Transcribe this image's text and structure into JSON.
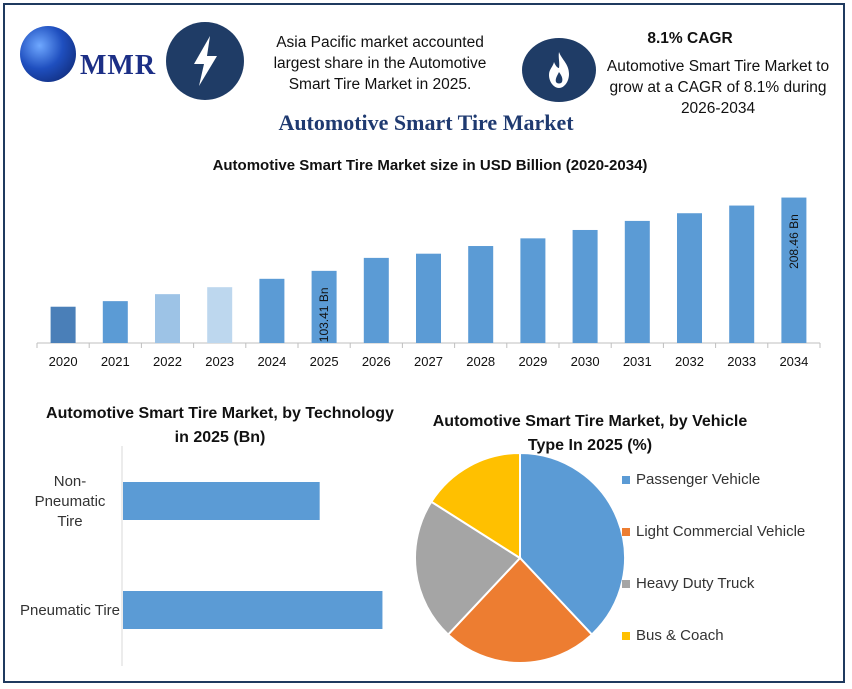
{
  "header": {
    "logo_text": "MMR",
    "callout_left": "Asia Pacific market accounted largest share in the Automotive Smart Tire Market in 2025.",
    "cagr_heading": "8.1% CAGR",
    "callout_right": "Automotive Smart Tire Market to grow at a CAGR of 8.1% during 2026-2034",
    "icons": [
      "lightning-icon",
      "flame-icon"
    ]
  },
  "main_title": "Automotive Smart Tire Market",
  "chart_data": [
    {
      "type": "bar",
      "title": "Automotive Smart Tire Market size in USD Billion (2020-2034)",
      "categories": [
        "2020",
        "2021",
        "2022",
        "2023",
        "2024",
        "2025",
        "2026",
        "2027",
        "2028",
        "2029",
        "2030",
        "2031",
        "2032",
        "2033",
        "2034"
      ],
      "values": [
        52,
        60,
        70,
        80,
        92,
        103.41,
        122,
        128,
        139,
        150,
        162,
        175,
        186,
        197,
        208.46
      ],
      "data_labels": {
        "5": "103.41 Bn",
        "14": "208.46 Bn"
      },
      "colors": [
        "#4a7fb8",
        "#5b9bd5",
        "#9dc3e6",
        "#bdd7ee",
        "#5b9bd5",
        "#5b9bd5",
        "#5b9bd5",
        "#5b9bd5",
        "#5b9bd5",
        "#5b9bd5",
        "#5b9bd5",
        "#5b9bd5",
        "#5b9bd5",
        "#5b9bd5",
        "#5b9bd5"
      ],
      "ylim": [
        0,
        215
      ],
      "grid": false
    },
    {
      "type": "bar",
      "orientation": "horizontal",
      "title": "Automotive Smart Tire Market, by Technology in 2025 (Bn)",
      "categories": [
        "Non-Pneumatic Tire",
        "Pneumatic Tire"
      ],
      "values": [
        47,
        62
      ],
      "xlim": [
        0,
        65
      ],
      "color": "#5b9bd5"
    },
    {
      "type": "pie",
      "title": "Automotive Smart Tire Market, by Vehicle Type In 2025 (%)",
      "labels": [
        "Passenger Vehicle",
        "Light Commercial Vehicle",
        "Heavy Duty Truck",
        "Bus & Coach"
      ],
      "values": [
        38,
        24,
        22,
        16
      ],
      "colors": [
        "#5b9bd5",
        "#ed7d31",
        "#a5a5a5",
        "#ffc000"
      ],
      "legend": "right"
    }
  ]
}
